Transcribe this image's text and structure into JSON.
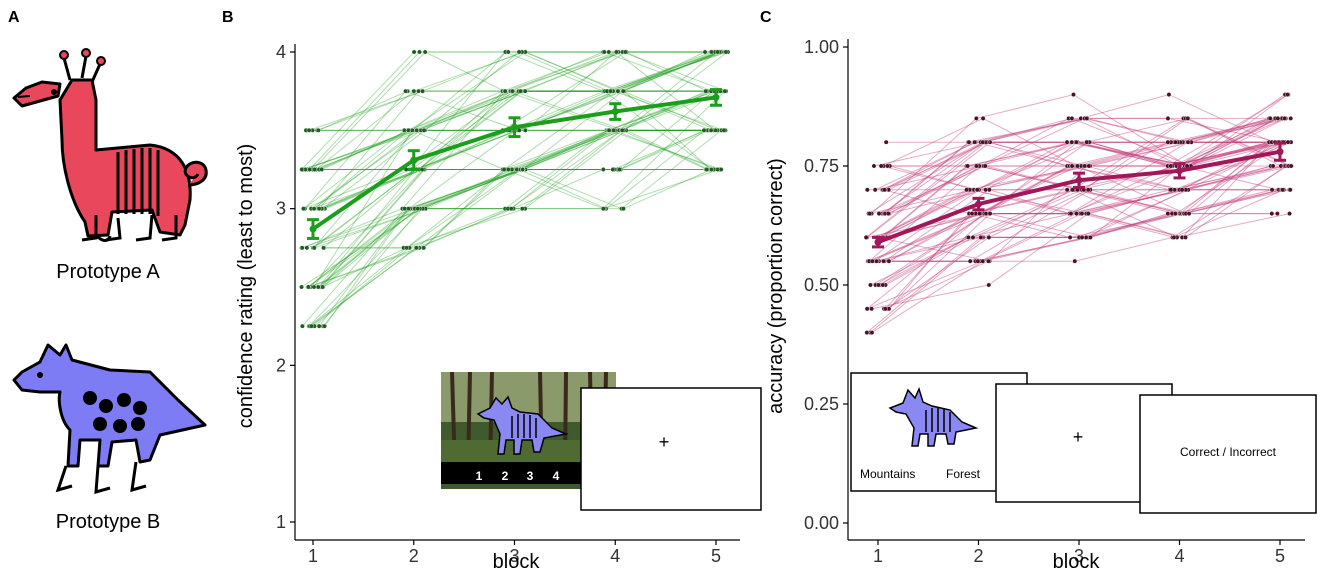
{
  "panels": {
    "a": {
      "letter": "A",
      "prototype_a_label": "Prototype A",
      "prototype_b_label": "Prototype B"
    },
    "b": {
      "letter": "B",
      "inset_keys": [
        "1",
        "2",
        "3",
        "4"
      ],
      "fixation": "+"
    },
    "c": {
      "letter": "C",
      "card_left": "Mountains",
      "card_right": "Forest",
      "fixation": "+",
      "feedback": "Correct / Incorrect"
    }
  },
  "colors": {
    "prototype_a": "#e8475c",
    "prototype_b": "#7e7cf5",
    "confidence": "#1b9e1b",
    "confidence_points": "#1f5c1f",
    "accuracy": "#a0175a",
    "accuracy_points": "#4a1228"
  },
  "chart_data": [
    {
      "type": "line",
      "panel": "B",
      "x": [
        1,
        2,
        3,
        4,
        5
      ],
      "series": [
        {
          "name": "mean confidence",
          "values": [
            2.87,
            3.31,
            3.52,
            3.62,
            3.71
          ],
          "error": [
            0.06,
            0.06,
            0.06,
            0.05,
            0.05
          ]
        }
      ],
      "xlabel": "block",
      "ylabel": "confidence rating (least to most)",
      "xticks": [
        "1",
        "2",
        "3",
        "4",
        "5"
      ],
      "yticks": [
        "1",
        "2",
        "3",
        "4"
      ],
      "ylim": [
        1,
        4
      ],
      "individual_participants": true
    },
    {
      "type": "line",
      "panel": "C",
      "x": [
        1,
        2,
        3,
        4,
        5
      ],
      "series": [
        {
          "name": "mean accuracy",
          "values": [
            0.59,
            0.67,
            0.72,
            0.74,
            0.78
          ],
          "error": [
            0.01,
            0.012,
            0.015,
            0.015,
            0.018
          ]
        }
      ],
      "xlabel": "block",
      "ylabel": "accuracy (proportion correct)",
      "xticks": [
        "1",
        "2",
        "3",
        "4",
        "5"
      ],
      "yticks": [
        "0.00",
        "0.25",
        "0.50",
        "0.75",
        "1.00"
      ],
      "ylim": [
        0,
        1
      ],
      "individual_participants": true
    }
  ]
}
